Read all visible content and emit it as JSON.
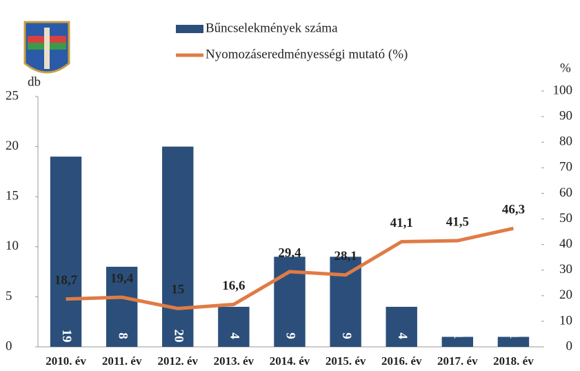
{
  "chart_data": {
    "type": "bar",
    "categories": [
      "2010. év",
      "2011. év",
      "2012. év",
      "2013. év",
      "2014. év",
      "2015. év",
      "2016. év",
      "2017. év",
      "2018. év"
    ],
    "series": [
      {
        "name": "Bűncselekmények száma",
        "type": "bar",
        "color": "#2b4f7a",
        "values": [
          19,
          8,
          20,
          4,
          9,
          9,
          4,
          1,
          1
        ]
      },
      {
        "name": "Nyomozáseredményességi mutató (%)",
        "type": "line",
        "axis": "y2",
        "color": "#e07b45",
        "values": [
          18.7,
          19.4,
          15,
          16.6,
          29.4,
          28.1,
          41.1,
          41.5,
          46.3
        ],
        "value_labels": [
          "18,7",
          "19,4",
          "15",
          "16,6",
          "29,4",
          "28,1",
          "41,1",
          "41,5",
          "46,3"
        ]
      }
    ],
    "ylabel": "db",
    "y2label": "%",
    "ylim": [
      0,
      25
    ],
    "yticks": [
      0,
      5,
      10,
      15,
      20,
      25
    ],
    "y2lim": [
      0,
      100
    ],
    "y2ticks": [
      0,
      10,
      20,
      30,
      40,
      50,
      60,
      70,
      80,
      90,
      100
    ]
  }
}
